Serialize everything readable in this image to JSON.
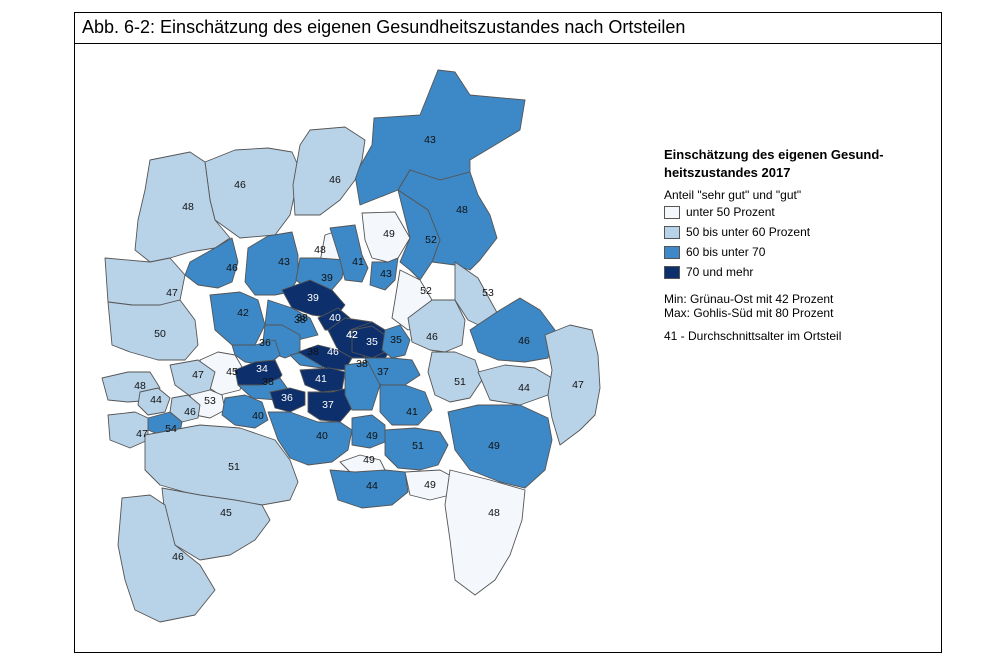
{
  "title": "Abb. 6-2:  Einschätzung des eigenen Gesundheitszustandes nach Ortsteilen",
  "legend": {
    "title": "Einschätzung des eigenen Gesund-heitszustandes 2017",
    "subtitle": "Anteil \"sehr gut\" und \"gut\"",
    "items": [
      {
        "label": "unter 50 Prozent",
        "color": "#f4f7fb"
      },
      {
        "label": "50 bis unter 60 Prozent",
        "color": "#b8d2e8"
      },
      {
        "label": "60 bis unter 70",
        "color": "#3d88c6"
      },
      {
        "label": "70 und mehr",
        "color": "#0d2f6b"
      }
    ],
    "min_note": "Min: Grünau-Ost mit 42 Prozent",
    "max_note": "Max: Gohlis-Süd mit 80 Prozent",
    "age_note": "41 - Durchschnittsalter im Ortsteil"
  },
  "map": {
    "district_labels": [
      "43",
      "46",
      "46",
      "48",
      "48",
      "49",
      "52",
      "46",
      "43",
      "48",
      "39",
      "41",
      "43",
      "47",
      "39",
      "40",
      "42",
      "38",
      "52",
      "53",
      "42",
      "38",
      "50",
      "36",
      "38",
      "46",
      "42",
      "35",
      "35",
      "46",
      "46",
      "45",
      "47",
      "34",
      "38",
      "41",
      "37",
      "51",
      "44",
      "47",
      "48",
      "44",
      "53",
      "36",
      "37",
      "38",
      "41",
      "46",
      "54",
      "47",
      "40",
      "40",
      "49",
      "51",
      "49",
      "51",
      "49",
      "44",
      "49",
      "45",
      "48",
      "46"
    ]
  }
}
